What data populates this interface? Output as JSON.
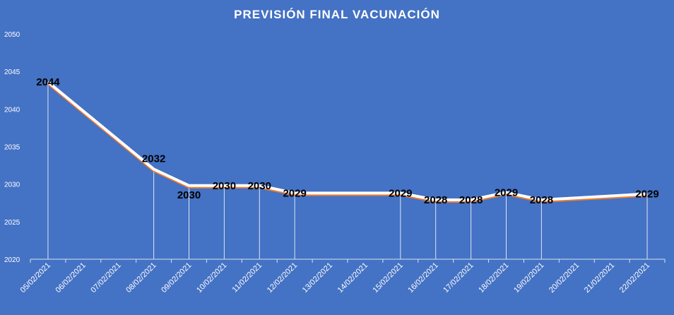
{
  "colors": {
    "background": "#4472C4",
    "line": "#FFFFFF",
    "line_shadow": "#ED7D31",
    "drop_line": "#DCE6F5",
    "data_label": "#000000",
    "text": "#FFFFFF"
  },
  "chart_data": {
    "type": "line",
    "title": "PREVISIÓN FINAL VACUNACIÓN",
    "xlabel": "",
    "ylabel": "",
    "ylim": [
      2020,
      2050
    ],
    "yticks": [
      "2020",
      "2025",
      "2030",
      "2035",
      "2040",
      "2045",
      "2050"
    ],
    "grid": false,
    "legend": "none",
    "categories": [
      "05/02/2021",
      "06/02/2021",
      "07/02/2021",
      "08/02/2021",
      "09/02/2021",
      "10/02/2021",
      "11/02/2021",
      "12/02/2021",
      "13/02/2021",
      "14/02/2021",
      "15/02/2021",
      "16/02/2021",
      "17/02/2021",
      "18/02/2021",
      "19/02/2021",
      "20/02/2021",
      "21/02/2021",
      "22/02/2021"
    ],
    "series": [
      {
        "values": [
          2043.6,
          null,
          null,
          2032,
          2029.8,
          2029.8,
          2029.8,
          2028.8,
          null,
          null,
          2028.8,
          2027.9,
          2027.9,
          2028.9,
          2027.9,
          null,
          null,
          2028.7
        ],
        "labels": [
          "2044",
          "",
          "",
          "2032",
          "2030",
          "2030",
          "2030",
          "2029",
          "",
          "",
          "2029",
          "2028",
          "2028",
          "2029",
          "2028",
          "",
          "",
          "2029"
        ]
      }
    ]
  }
}
